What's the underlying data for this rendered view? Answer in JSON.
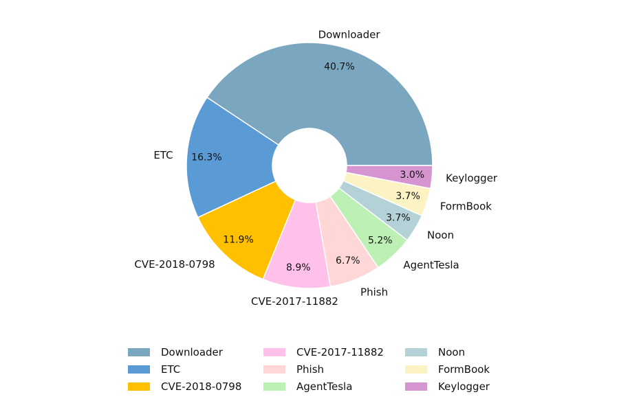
{
  "chart_data": {
    "type": "pie",
    "donut": true,
    "title": "",
    "slices": [
      {
        "label": "Downloader",
        "value": 40.7,
        "pct_label": "40.7%",
        "color": "#7aa6c0"
      },
      {
        "label": "ETC",
        "value": 16.3,
        "pct_label": "16.3%",
        "color": "#5b9bd5"
      },
      {
        "label": "CVE-2018-0798",
        "value": 11.9,
        "pct_label": "11.9%",
        "color": "#ffc000"
      },
      {
        "label": "CVE-2017-11882",
        "value": 8.9,
        "pct_label": "8.9%",
        "color": "#ffc0ea"
      },
      {
        "label": "Phish",
        "value": 6.7,
        "pct_label": "6.7%",
        "color": "#ffd7d7"
      },
      {
        "label": "AgentTesla",
        "value": 5.2,
        "pct_label": "5.2%",
        "color": "#bdf0b4"
      },
      {
        "label": "Noon",
        "value": 3.7,
        "pct_label": "3.7%",
        "color": "#b3d1d6"
      },
      {
        "label": "FormBook",
        "value": 3.7,
        "pct_label": "3.7%",
        "color": "#fbf3c3"
      },
      {
        "label": "Keylogger",
        "value": 3.0,
        "pct_label": "3.0%",
        "color": "#d495d1"
      }
    ],
    "start": "right, counterclockwise",
    "legend_position": "bottom-center"
  }
}
